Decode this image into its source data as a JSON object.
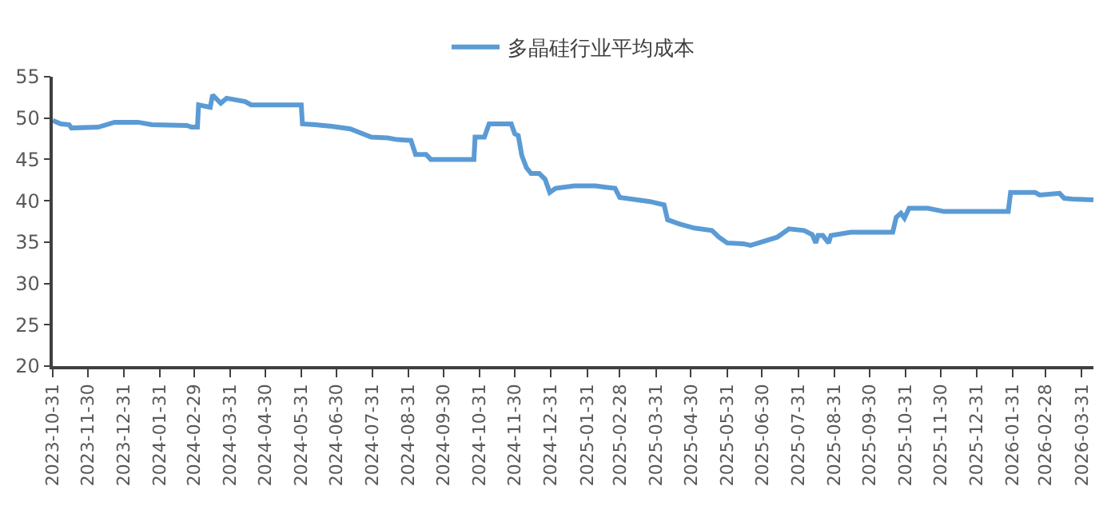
{
  "chart_data": {
    "type": "line",
    "legend": "top",
    "grid": false,
    "marker": "none",
    "line_style": "solid",
    "ylim": [
      20,
      55
    ],
    "yticks": [
      20,
      25,
      30,
      35,
      40,
      45,
      50,
      55
    ],
    "xlim": [
      "2023-10-31",
      "2026-04-10"
    ],
    "xticks": [
      "2023-10-31",
      "2023-11-30",
      "2023-12-31",
      "2024-01-31",
      "2024-02-29",
      "2024-03-31",
      "2024-04-30",
      "2024-05-31",
      "2024-06-30",
      "2024-07-31",
      "2024-08-31",
      "2024-09-30",
      "2024-10-31",
      "2024-11-30",
      "2024-12-31",
      "2025-01-31",
      "2025-02-28",
      "2025-03-31",
      "2025-04-30",
      "2025-05-31",
      "2025-06-30",
      "2025-07-31",
      "2025-08-31",
      "2025-09-30",
      "2025-10-31",
      "2025-11-30",
      "2025-12-31",
      "2026-01-31",
      "2026-02-28",
      "2026-03-31"
    ],
    "series": [
      {
        "name": "多晶硅行业平均成本",
        "color": "#5b9bd5",
        "x": [
          "2023-10-31",
          "2023-11-07",
          "2023-11-14",
          "2023-11-16",
          "2023-12-09",
          "2023-12-23",
          "2024-01-12",
          "2024-01-24",
          "2024-02-23",
          "2024-02-27",
          "2024-03-03",
          "2024-03-04",
          "2024-03-14",
          "2024-03-16",
          "2024-03-23",
          "2024-03-28",
          "2024-04-13",
          "2024-04-18",
          "2024-05-31",
          "2024-06-01",
          "2024-06-12",
          "2024-06-26",
          "2024-07-12",
          "2024-07-30",
          "2024-08-13",
          "2024-08-21",
          "2024-09-02",
          "2024-09-06",
          "2024-09-15",
          "2024-09-19",
          "2024-10-26",
          "2024-10-27",
          "2024-11-04",
          "2024-11-08",
          "2024-11-27",
          "2024-11-30",
          "2024-12-03",
          "2024-12-06",
          "2024-12-10",
          "2024-12-14",
          "2024-12-21",
          "2024-12-26",
          "2024-12-30",
          "2025-01-04",
          "2025-01-20",
          "2025-02-07",
          "2025-02-24",
          "2025-02-28",
          "2025-03-26",
          "2025-04-07",
          "2025-04-10",
          "2025-04-20",
          "2025-05-03",
          "2025-05-18",
          "2025-05-24",
          "2025-05-31",
          "2025-06-14",
          "2025-06-20",
          "2025-06-27",
          "2025-07-13",
          "2025-07-23",
          "2025-08-05",
          "2025-08-12",
          "2025-08-15",
          "2025-08-17",
          "2025-08-21",
          "2025-08-26",
          "2025-08-28",
          "2025-09-14",
          "2025-10-20",
          "2025-10-23",
          "2025-10-27",
          "2025-10-30",
          "2025-11-03",
          "2025-11-19",
          "2025-12-03",
          "2026-01-27",
          "2026-01-29",
          "2026-02-19",
          "2026-02-23",
          "2026-03-12",
          "2026-03-16",
          "2026-03-23",
          "2026-04-10"
        ],
        "values": [
          49.7,
          49.3,
          49.2,
          48.8,
          48.9,
          49.5,
          49.5,
          49.2,
          49.1,
          48.9,
          48.9,
          51.6,
          51.3,
          52.8,
          51.8,
          52.4,
          52.0,
          51.6,
          51.6,
          49.3,
          49.2,
          49.0,
          48.7,
          47.7,
          47.6,
          47.4,
          47.3,
          45.6,
          45.6,
          45.0,
          45.0,
          47.7,
          47.7,
          49.3,
          49.3,
          48.1,
          47.9,
          45.5,
          44.0,
          43.3,
          43.3,
          42.6,
          41.0,
          41.5,
          41.8,
          41.8,
          41.5,
          40.4,
          39.9,
          39.5,
          37.7,
          37.2,
          36.7,
          36.4,
          35.6,
          34.9,
          34.8,
          34.6,
          34.9,
          35.6,
          36.6,
          36.4,
          35.9,
          34.9,
          35.8,
          35.8,
          34.9,
          35.8,
          36.2,
          36.2,
          38.0,
          38.5,
          37.9,
          39.1,
          39.1,
          38.7,
          38.7,
          41.0,
          41.0,
          40.7,
          40.9,
          40.3,
          40.2,
          40.1
        ]
      }
    ]
  }
}
